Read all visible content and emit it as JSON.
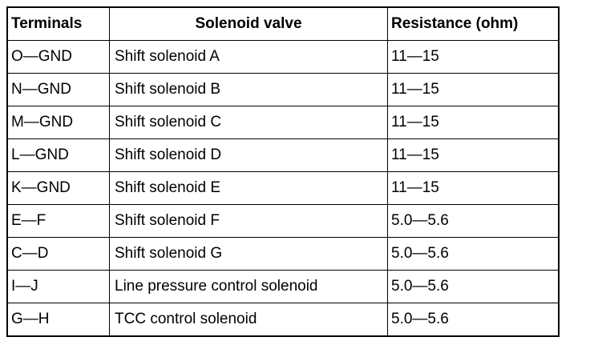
{
  "table": {
    "header": [
      "Terminals",
      "Solenoid valve",
      "Resistance (ohm)"
    ],
    "rows": [
      [
        "O—GND",
        "Shift solenoid A",
        "11—15"
      ],
      [
        "N—GND",
        "Shift solenoid B",
        "11—15"
      ],
      [
        "M—GND",
        "Shift solenoid C",
        "11—15"
      ],
      [
        "L—GND",
        "Shift solenoid D",
        "11—15"
      ],
      [
        "K—GND",
        "Shift solenoid E",
        "11—15"
      ],
      [
        "E—F",
        "Shift solenoid F",
        "5.0—5.6"
      ],
      [
        "C—D",
        "Shift solenoid G",
        "5.0—5.6"
      ],
      [
        "I—J",
        "Line pressure control solenoid",
        "5.0—5.6"
      ],
      [
        "G—H",
        "TCC control solenoid",
        "5.0—5.6"
      ]
    ]
  }
}
